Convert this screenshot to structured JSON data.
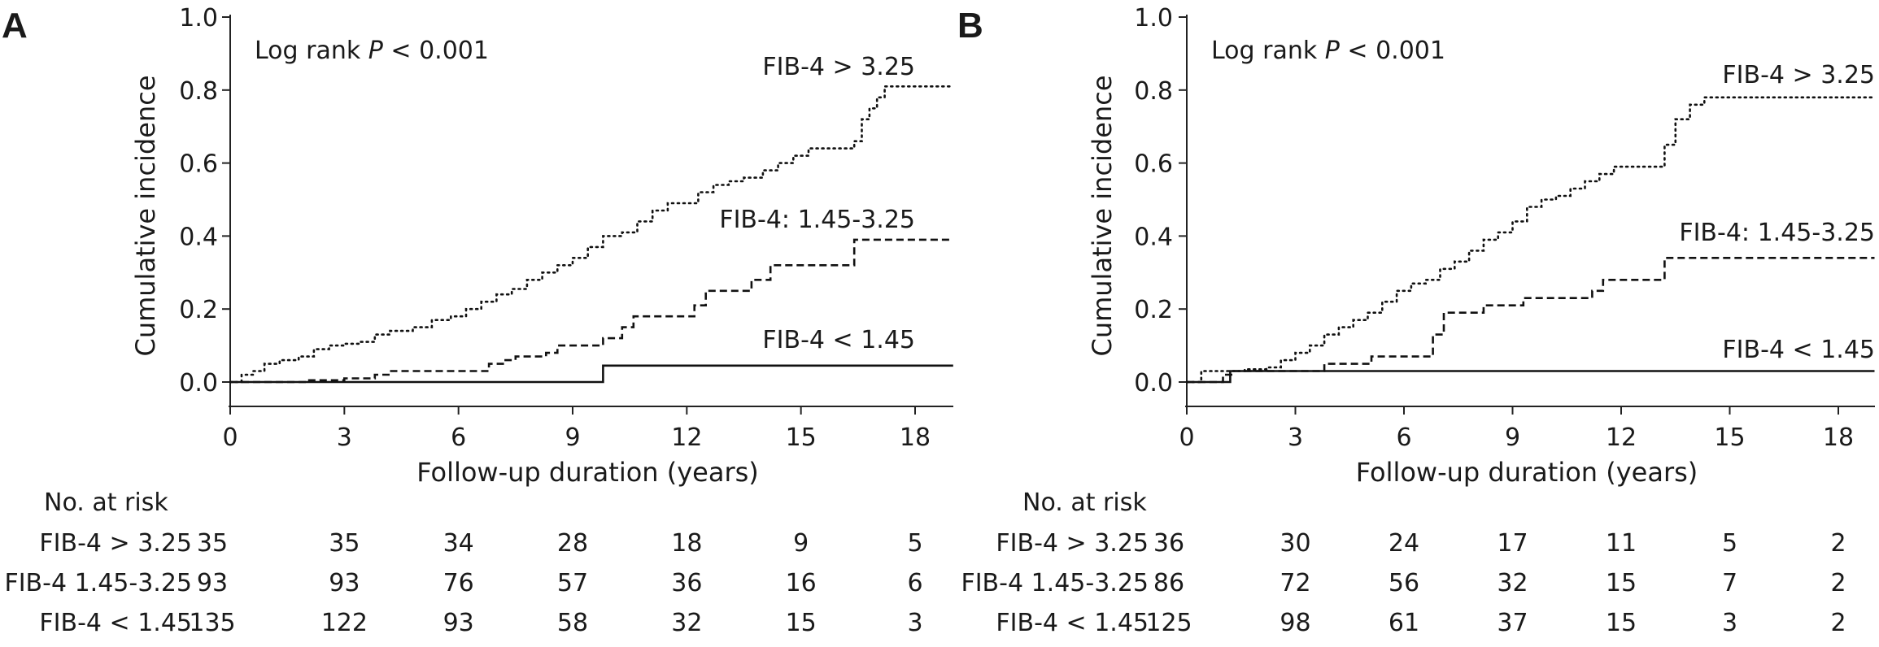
{
  "chart_data": [
    {
      "panel": "A",
      "type": "line",
      "ylabel": "Cumulative incidence",
      "xlabel": "Follow-up duration (years)",
      "xlim": [
        0,
        19
      ],
      "ylim": [
        0,
        1.0
      ],
      "x_ticks": [
        0,
        3,
        6,
        9,
        12,
        15,
        18
      ],
      "y_ticks": [
        "0.0",
        "0.2",
        "0.4",
        "0.6",
        "0.8",
        "1.0"
      ],
      "annotation_prefix": "Log rank ",
      "annotation_italic": "P",
      "annotation_suffix": " < 0.001",
      "series": [
        {
          "name": "FIB-4 > 3.25",
          "style": "dotted",
          "points": [
            [
              0,
              0
            ],
            [
              0.3,
              0.02
            ],
            [
              0.6,
              0.03
            ],
            [
              0.9,
              0.05
            ],
            [
              1.3,
              0.06
            ],
            [
              1.8,
              0.07
            ],
            [
              2.2,
              0.09
            ],
            [
              2.6,
              0.1
            ],
            [
              3.0,
              0.105
            ],
            [
              3.4,
              0.11
            ],
            [
              3.8,
              0.13
            ],
            [
              4.2,
              0.14
            ],
            [
              4.8,
              0.15
            ],
            [
              5.3,
              0.17
            ],
            [
              5.8,
              0.18
            ],
            [
              6.2,
              0.2
            ],
            [
              6.6,
              0.22
            ],
            [
              7.0,
              0.24
            ],
            [
              7.4,
              0.255
            ],
            [
              7.8,
              0.28
            ],
            [
              8.2,
              0.3
            ],
            [
              8.6,
              0.32
            ],
            [
              9.0,
              0.34
            ],
            [
              9.4,
              0.37
            ],
            [
              9.8,
              0.4
            ],
            [
              10.3,
              0.41
            ],
            [
              10.7,
              0.44
            ],
            [
              11.1,
              0.47
            ],
            [
              11.5,
              0.49
            ],
            [
              12.0,
              0.49
            ],
            [
              12.3,
              0.52
            ],
            [
              12.7,
              0.54
            ],
            [
              13.1,
              0.55
            ],
            [
              13.5,
              0.56
            ],
            [
              14.0,
              0.58
            ],
            [
              14.4,
              0.6
            ],
            [
              14.8,
              0.62
            ],
            [
              15.2,
              0.64
            ],
            [
              16.3,
              0.64
            ],
            [
              16.4,
              0.66
            ],
            [
              16.6,
              0.72
            ],
            [
              16.8,
              0.75
            ],
            [
              17.0,
              0.78
            ],
            [
              17.2,
              0.81
            ],
            [
              19,
              0.81
            ]
          ],
          "label_text": "FIB-4 > 3.25"
        },
        {
          "name": "FIB-4: 1.45-3.25",
          "style": "dashed",
          "points": [
            [
              0,
              0
            ],
            [
              2.0,
              0.005
            ],
            [
              3.0,
              0.01
            ],
            [
              3.8,
              0.02
            ],
            [
              4.2,
              0.03
            ],
            [
              6.5,
              0.03
            ],
            [
              6.8,
              0.05
            ],
            [
              7.2,
              0.06
            ],
            [
              7.5,
              0.07
            ],
            [
              8.3,
              0.08
            ],
            [
              8.6,
              0.1
            ],
            [
              9.4,
              0.1
            ],
            [
              9.8,
              0.12
            ],
            [
              10.3,
              0.15
            ],
            [
              10.6,
              0.18
            ],
            [
              11.9,
              0.18
            ],
            [
              12.2,
              0.21
            ],
            [
              12.5,
              0.25
            ],
            [
              13.4,
              0.25
            ],
            [
              13.7,
              0.28
            ],
            [
              14.2,
              0.32
            ],
            [
              15.2,
              0.32
            ],
            [
              16.3,
              0.32
            ],
            [
              16.4,
              0.39
            ],
            [
              19,
              0.39
            ]
          ],
          "label_text": "FIB-4: 1.45-3.25"
        },
        {
          "name": "FIB-4 < 1.45",
          "style": "solid",
          "points": [
            [
              0,
              0
            ],
            [
              9.6,
              0
            ],
            [
              9.8,
              0.045
            ],
            [
              19,
              0.045
            ]
          ],
          "label_text": "FIB-4 < 1.45"
        }
      ],
      "risk_table": {
        "title": "No. at risk",
        "rows": [
          {
            "label": "FIB-4 > 3.25",
            "values": [
              35,
              35,
              34,
              28,
              18,
              9,
              5
            ]
          },
          {
            "label": "FIB-4 1.45-3.25",
            "values": [
              93,
              93,
              76,
              57,
              36,
              16,
              6
            ]
          },
          {
            "label": "FIB-4 < 1.45",
            "values": [
              135,
              122,
              93,
              58,
              32,
              15,
              3
            ]
          }
        ]
      }
    },
    {
      "panel": "B",
      "type": "line",
      "ylabel": "Cumulative incidence",
      "xlabel": "Follow-up duration (years)",
      "xlim": [
        0,
        19
      ],
      "ylim": [
        0,
        1.0
      ],
      "x_ticks": [
        0,
        3,
        6,
        9,
        12,
        15,
        18
      ],
      "y_ticks": [
        "0.0",
        "0.2",
        "0.4",
        "0.6",
        "0.8",
        "1.0"
      ],
      "annotation_prefix": "Log rank ",
      "annotation_italic": "P",
      "annotation_suffix": " < 0.001",
      "series": [
        {
          "name": "FIB-4 > 3.25",
          "style": "dotted",
          "points": [
            [
              0,
              0
            ],
            [
              0.4,
              0.03
            ],
            [
              1.2,
              0.03
            ],
            [
              1.6,
              0.035
            ],
            [
              2.2,
              0.04
            ],
            [
              2.6,
              0.06
            ],
            [
              3.0,
              0.08
            ],
            [
              3.4,
              0.1
            ],
            [
              3.8,
              0.13
            ],
            [
              4.2,
              0.15
            ],
            [
              4.6,
              0.17
            ],
            [
              5.0,
              0.19
            ],
            [
              5.4,
              0.22
            ],
            [
              5.8,
              0.25
            ],
            [
              6.2,
              0.27
            ],
            [
              6.6,
              0.28
            ],
            [
              7.0,
              0.31
            ],
            [
              7.4,
              0.33
            ],
            [
              7.8,
              0.36
            ],
            [
              8.2,
              0.39
            ],
            [
              8.6,
              0.41
            ],
            [
              9.0,
              0.44
            ],
            [
              9.4,
              0.48
            ],
            [
              9.8,
              0.5
            ],
            [
              10.2,
              0.51
            ],
            [
              10.6,
              0.53
            ],
            [
              11.0,
              0.55
            ],
            [
              11.4,
              0.57
            ],
            [
              11.8,
              0.59
            ],
            [
              13.0,
              0.59
            ],
            [
              13.2,
              0.65
            ],
            [
              13.5,
              0.72
            ],
            [
              13.9,
              0.76
            ],
            [
              14.3,
              0.78
            ],
            [
              19,
              0.78
            ]
          ],
          "label_text": "FIB-4 > 3.25"
        },
        {
          "name": "FIB-4: 1.45-3.25",
          "style": "dashed",
          "points": [
            [
              0,
              0
            ],
            [
              0.8,
              0.0
            ],
            [
              1.0,
              0.02
            ],
            [
              1.3,
              0.03
            ],
            [
              3.4,
              0.03
            ],
            [
              3.8,
              0.05
            ],
            [
              4.8,
              0.05
            ],
            [
              5.1,
              0.07
            ],
            [
              6.5,
              0.07
            ],
            [
              6.8,
              0.13
            ],
            [
              7.1,
              0.19
            ],
            [
              7.8,
              0.19
            ],
            [
              8.2,
              0.21
            ],
            [
              9.0,
              0.21
            ],
            [
              9.3,
              0.23
            ],
            [
              10.8,
              0.23
            ],
            [
              11.2,
              0.25
            ],
            [
              11.5,
              0.28
            ],
            [
              12.9,
              0.28
            ],
            [
              13.2,
              0.34
            ],
            [
              19,
              0.34
            ]
          ],
          "label_text": "FIB-4: 1.45-3.25"
        },
        {
          "name": "FIB-4 < 1.45",
          "style": "solid",
          "points": [
            [
              0,
              0
            ],
            [
              0.8,
              0
            ],
            [
              1.2,
              0.03
            ],
            [
              19,
              0.03
            ]
          ],
          "label_text": "FIB-4 < 1.45"
        }
      ],
      "risk_table": {
        "title": "No. at risk",
        "rows": [
          {
            "label": "FIB-4 > 3.25",
            "values": [
              36,
              30,
              24,
              17,
              11,
              5,
              2
            ]
          },
          {
            "label": "FIB-4 1.45-3.25",
            "values": [
              86,
              72,
              56,
              32,
              15,
              7,
              2
            ]
          },
          {
            "label": "FIB-4 < 1.45",
            "values": [
              125,
              98,
              61,
              37,
              15,
              3,
              2
            ]
          }
        ]
      }
    }
  ]
}
